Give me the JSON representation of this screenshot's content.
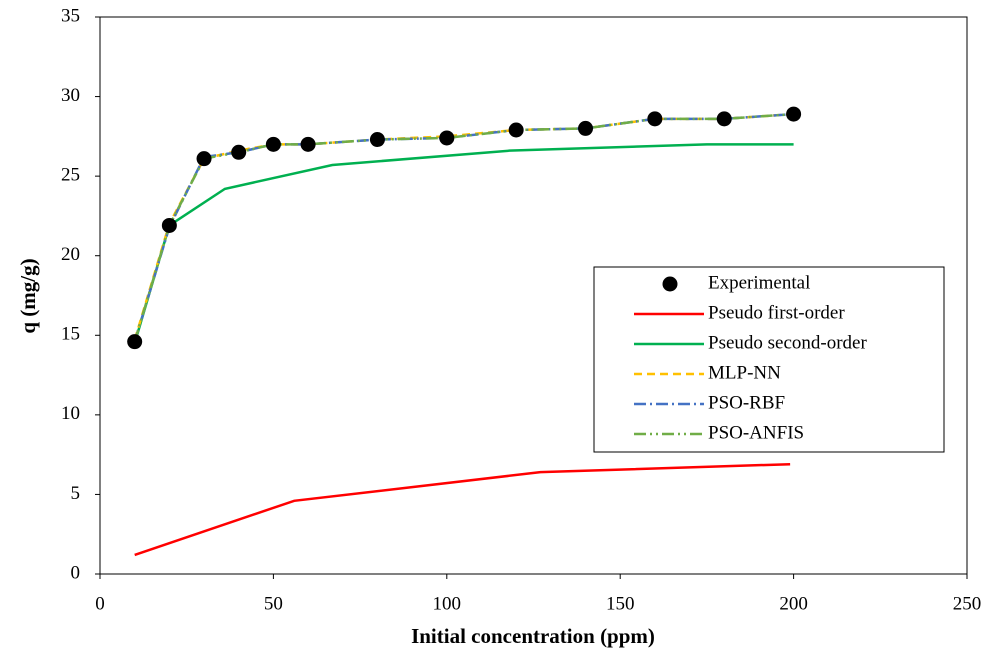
{
  "chart_data": {
    "type": "line",
    "x_label": "Initial concentration (ppm)",
    "y_label": "q (mg/g)",
    "xlim": [
      0,
      250
    ],
    "xticks": [
      0,
      50,
      100,
      150,
      200,
      250
    ],
    "ylim": [
      0,
      35
    ],
    "yticks": [
      0,
      5,
      10,
      15,
      20,
      25,
      30,
      35
    ],
    "grid": false,
    "legend": "right",
    "series": [
      {
        "name": "Experimental",
        "color": "#000000",
        "style": "marker",
        "x": [
          10,
          20,
          30,
          40,
          50,
          60,
          80,
          100,
          120,
          140,
          160,
          180,
          200
        ],
        "values": [
          14.6,
          21.9,
          26.1,
          26.5,
          27.0,
          27.0,
          27.3,
          27.4,
          27.9,
          28.0,
          28.6,
          28.6,
          28.9
        ]
      },
      {
        "name": "Pseudo first-order",
        "color": "#ff0000",
        "style": "solid",
        "x": [
          10,
          56,
          127,
          199
        ],
        "values": [
          1.2,
          4.6,
          6.4,
          6.9
        ]
      },
      {
        "name": "Pseudo second-order",
        "color": "#00b050",
        "style": "solid",
        "x": [
          10,
          20,
          36,
          67,
          118,
          175,
          200
        ],
        "values": [
          14.5,
          21.9,
          24.2,
          25.7,
          26.6,
          27.0,
          27.0
        ]
      },
      {
        "name": "MLP-NN",
        "color": "#ffc000",
        "style": "dash",
        "x": [
          10,
          20,
          30,
          40,
          50,
          60,
          80,
          100,
          120,
          140,
          160,
          180,
          200
        ],
        "values": [
          14.7,
          22.0,
          26.1,
          26.6,
          27.0,
          27.0,
          27.3,
          27.5,
          27.9,
          28.0,
          28.6,
          28.6,
          28.9
        ]
      },
      {
        "name": "PSO-RBF",
        "color": "#4472c4",
        "style": "dashdot",
        "x": [
          10,
          20,
          30,
          40,
          50,
          60,
          80,
          100,
          120,
          140,
          160,
          180,
          200
        ],
        "values": [
          14.6,
          21.8,
          26.2,
          26.5,
          27.0,
          27.0,
          27.3,
          27.4,
          27.9,
          28.0,
          28.6,
          28.6,
          28.9
        ]
      },
      {
        "name": "PSO-ANFIS",
        "color": "#70ad47",
        "style": "dashdotdot",
        "x": [
          10,
          20,
          30,
          40,
          50,
          60,
          80,
          100,
          120,
          140,
          160,
          180,
          200
        ],
        "values": [
          14.6,
          21.9,
          26.1,
          26.5,
          27.0,
          27.0,
          27.3,
          27.4,
          27.9,
          28.0,
          28.6,
          28.6,
          28.9
        ]
      }
    ]
  }
}
